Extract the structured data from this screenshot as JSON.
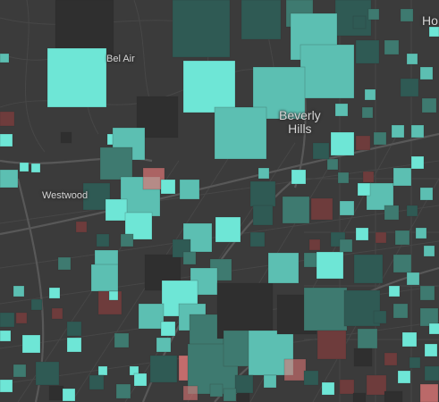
{
  "map": {
    "labels": {
      "bel_air": "Bel Air",
      "westwood": "Westwood",
      "beverly_line1": "Beverly",
      "beverly_line2": "Hills",
      "ho": "Ho"
    },
    "colors": {
      "background": "#3b3b3b",
      "roads_minor": "#4a4a4a",
      "roads_major": "#575757",
      "teal_bright": "#6ee6d6",
      "teal_medium": "#5cbfb2",
      "teal_dark": "#3e7a70",
      "teal_deep": "#2f5a54",
      "charcoal": "#2f2f2f",
      "red_dark": "#6e3c3c",
      "red_bright": "#dc7575"
    }
  }
}
